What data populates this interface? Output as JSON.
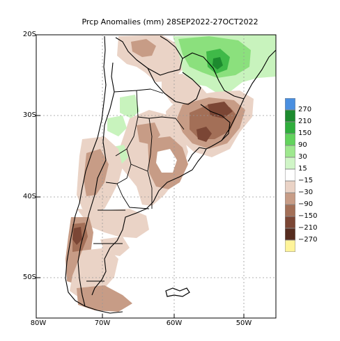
{
  "title": "Prcp Anomalies (mm) 28SEP2022-27OCT2022",
  "lat_labels": [
    "20S",
    "30S",
    "40S",
    "50S"
  ],
  "lon_labels": [
    "80W",
    "70W",
    "60W",
    "50W"
  ],
  "legend": {
    "labels": [
      "270",
      "210",
      "150",
      "90",
      "30",
      "15",
      "−15",
      "−30",
      "−90",
      "−150",
      "−210",
      "−270"
    ],
    "colors": [
      "#4a8fe0",
      "#1c8a2e",
      "#2fae3c",
      "#62d35c",
      "#9ee88e",
      "#d0f5c7",
      "#ffffff",
      "#ead3c6",
      "#c79c86",
      "#a36f57",
      "#7b4635",
      "#562c1f",
      "#fff49a"
    ]
  },
  "colors": {
    "dry_light": "#ead3c6",
    "dry_mid": "#c79c86",
    "dry_strong": "#a36f57",
    "dry_extreme": "#7b4635",
    "wet_light": "#c8f3bd",
    "wet_mid": "#8be07d",
    "wet_strong": "#3fb948",
    "wet_extreme": "#1c8a2e"
  }
}
